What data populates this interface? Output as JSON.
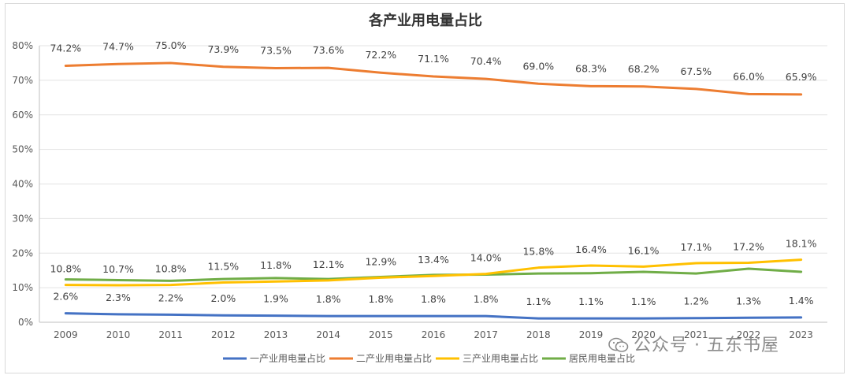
{
  "chart_data": {
    "type": "line",
    "title": "各产业用电量占比",
    "x": [
      "2009",
      "2010",
      "2011",
      "2012",
      "2013",
      "2014",
      "2015",
      "2016",
      "2017",
      "2018",
      "2019",
      "2020",
      "2021",
      "2022",
      "2023"
    ],
    "ylim": [
      0,
      80
    ],
    "y_ticks": [
      "0%",
      "10%",
      "20%",
      "30%",
      "40%",
      "50%",
      "60%",
      "70%",
      "80%"
    ],
    "grid": true,
    "legend_position": "bottom",
    "series": [
      {
        "name": "一产业用电量占比",
        "color": "#4472C4",
        "values": [
          2.6,
          2.3,
          2.2,
          2.0,
          1.9,
          1.8,
          1.8,
          1.8,
          1.8,
          1.1,
          1.1,
          1.1,
          1.2,
          1.3,
          1.4
        ],
        "labels": [
          "2.6%",
          "2.3%",
          "2.2%",
          "2.0%",
          "1.9%",
          "1.8%",
          "1.8%",
          "1.8%",
          "1.8%",
          "1.1%",
          "1.1%",
          "1.1%",
          "1.2%",
          "1.3%",
          "1.4%"
        ]
      },
      {
        "name": "二产业用电量占比",
        "color": "#ED7D31",
        "values": [
          74.2,
          74.7,
          75.0,
          73.9,
          73.5,
          73.6,
          72.2,
          71.1,
          70.4,
          69.0,
          68.3,
          68.2,
          67.5,
          66.0,
          65.9
        ],
        "labels": [
          "74.2%",
          "74.7%",
          "75.0%",
          "73.9%",
          "73.5%",
          "73.6%",
          "72.2%",
          "71.1%",
          "70.4%",
          "69.0%",
          "68.3%",
          "68.2%",
          "67.5%",
          "66.0%",
          "65.9%"
        ]
      },
      {
        "name": "三产业用电量占比",
        "color": "#FFC000",
        "values": [
          10.8,
          10.7,
          10.8,
          11.5,
          11.8,
          12.1,
          12.9,
          13.4,
          14.0,
          15.8,
          16.4,
          16.1,
          17.1,
          17.2,
          18.1
        ],
        "labels": [
          "10.8%",
          "10.7%",
          "10.8%",
          "11.5%",
          "11.8%",
          "12.1%",
          "12.9%",
          "13.4%",
          "14.0%",
          "15.8%",
          "16.4%",
          "16.1%",
          "17.1%",
          "17.2%",
          "18.1%"
        ]
      },
      {
        "name": "居民用电量占比",
        "color": "#70AD47",
        "values": [
          12.4,
          12.2,
          12.0,
          12.5,
          12.8,
          12.5,
          13.1,
          13.7,
          13.8,
          14.1,
          14.2,
          14.6,
          14.1,
          15.5,
          14.6
        ],
        "labels": []
      }
    ]
  },
  "watermark": {
    "text": "公众号 · 五东书屋",
    "icon": "wechat-icon"
  }
}
